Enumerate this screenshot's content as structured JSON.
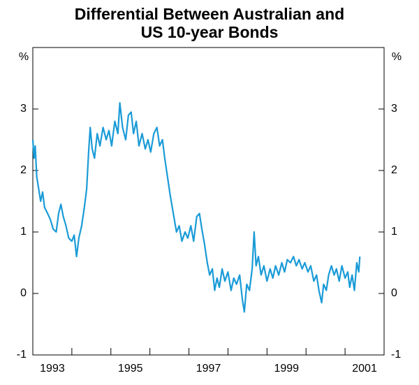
{
  "chart_data": {
    "type": "line",
    "title": [
      "Differential Between Australian and",
      "US 10-year Bonds"
    ],
    "y_unit_label": "%",
    "xlim": [
      1993,
      2002
    ],
    "xticks": [
      {
        "value": 1993.5,
        "label": "1993"
      },
      {
        "value": 1995.5,
        "label": "1995"
      },
      {
        "value": 1997.5,
        "label": "1997"
      },
      {
        "value": 1999.5,
        "label": "1999"
      },
      {
        "value": 2001.5,
        "label": "2001"
      }
    ],
    "xminor_ticks": [
      1994,
      1995,
      1996,
      1997,
      1998,
      1999,
      2000,
      2001
    ],
    "ylim": [
      -1,
      4
    ],
    "yticks": [
      -1,
      0,
      1,
      2,
      3
    ],
    "series": [
      {
        "color": "#1a9bd7",
        "x": [
          1993.0,
          1993.03,
          1993.06,
          1993.1,
          1993.15,
          1993.2,
          1993.25,
          1993.3,
          1993.38,
          1993.45,
          1993.52,
          1993.6,
          1993.66,
          1993.72,
          1993.78,
          1993.85,
          1993.92,
          1994.0,
          1994.06,
          1994.12,
          1994.18,
          1994.25,
          1994.32,
          1994.38,
          1994.43,
          1994.47,
          1994.52,
          1994.58,
          1994.65,
          1994.72,
          1994.8,
          1994.88,
          1994.95,
          1995.02,
          1995.1,
          1995.18,
          1995.23,
          1995.3,
          1995.38,
          1995.45,
          1995.52,
          1995.58,
          1995.65,
          1995.72,
          1995.8,
          1995.88,
          1995.95,
          1996.02,
          1996.1,
          1996.18,
          1996.25,
          1996.32,
          1996.38,
          1996.45,
          1996.52,
          1996.6,
          1996.68,
          1996.75,
          1996.82,
          1996.9,
          1996.97,
          1997.05,
          1997.12,
          1997.2,
          1997.27,
          1997.33,
          1997.4,
          1997.47,
          1997.53,
          1997.6,
          1997.66,
          1997.72,
          1997.78,
          1997.85,
          1997.92,
          1998.0,
          1998.08,
          1998.15,
          1998.22,
          1998.3,
          1998.37,
          1998.42,
          1998.48,
          1998.55,
          1998.62,
          1998.67,
          1998.72,
          1998.78,
          1998.85,
          1998.92,
          1999.0,
          1999.08,
          1999.15,
          1999.22,
          1999.3,
          1999.38,
          1999.45,
          1999.52,
          1999.6,
          1999.68,
          1999.75,
          1999.82,
          1999.9,
          1999.97,
          2000.05,
          2000.12,
          2000.2,
          2000.27,
          2000.33,
          2000.4,
          2000.45,
          2000.52,
          2000.58,
          2000.65,
          2000.72,
          2000.78,
          2000.85,
          2000.92,
          2001.0,
          2001.07,
          2001.12,
          2001.18,
          2001.24,
          2001.3,
          2001.35,
          2001.38
        ],
        "values": [
          2.5,
          2.2,
          2.4,
          1.9,
          1.7,
          1.5,
          1.65,
          1.4,
          1.3,
          1.2,
          1.05,
          1.0,
          1.3,
          1.45,
          1.25,
          1.1,
          0.9,
          0.85,
          0.95,
          0.6,
          0.9,
          1.1,
          1.4,
          1.7,
          2.3,
          2.7,
          2.35,
          2.2,
          2.6,
          2.4,
          2.7,
          2.5,
          2.65,
          2.4,
          2.8,
          2.6,
          3.1,
          2.7,
          2.5,
          2.9,
          2.95,
          2.6,
          2.8,
          2.4,
          2.6,
          2.35,
          2.5,
          2.3,
          2.6,
          2.7,
          2.4,
          2.5,
          2.2,
          1.9,
          1.6,
          1.3,
          1.0,
          1.1,
          0.85,
          1.0,
          0.9,
          1.1,
          0.85,
          1.25,
          1.3,
          1.05,
          0.8,
          0.5,
          0.3,
          0.4,
          0.05,
          0.25,
          0.1,
          0.4,
          0.2,
          0.35,
          0.05,
          0.25,
          0.15,
          0.3,
          -0.1,
          -0.3,
          0.15,
          0.05,
          0.4,
          1.0,
          0.45,
          0.6,
          0.3,
          0.45,
          0.2,
          0.4,
          0.25,
          0.45,
          0.3,
          0.5,
          0.35,
          0.55,
          0.5,
          0.6,
          0.45,
          0.55,
          0.4,
          0.5,
          0.35,
          0.45,
          0.2,
          0.3,
          0.05,
          -0.15,
          0.15,
          0.05,
          0.3,
          0.45,
          0.3,
          0.4,
          0.2,
          0.45,
          0.25,
          0.35,
          0.1,
          0.3,
          0.05,
          0.5,
          0.35,
          0.6
        ]
      }
    ]
  }
}
